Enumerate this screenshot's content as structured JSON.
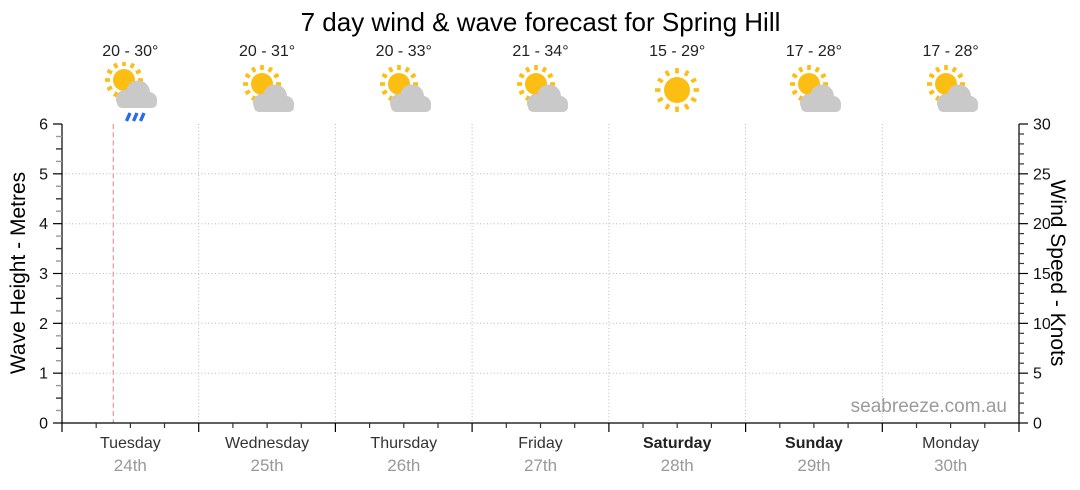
{
  "title": "7 day wind & wave forecast for Spring Hill",
  "watermark": "seabreeze.com.au",
  "colors": {
    "sun": "#fcbe12",
    "cloud": "#c9c9c9",
    "rain": "#2a6be8",
    "grid": "#b8b8b8",
    "axis": "#000000",
    "half_tick": "#333333",
    "quarter_tick": "#999999",
    "day_text": "#333333",
    "date_text": "#999999",
    "temp_text": "#222222",
    "watermark_text": "#9b9b9b",
    "now_line": "#f09c9c"
  },
  "forecast_days": [
    {
      "day": "Tuesday",
      "date": "24th",
      "temp_range": "20 - 30°",
      "icon": "sun-cloud-rain",
      "bold": false
    },
    {
      "day": "Wednesday",
      "date": "25th",
      "temp_range": "20 - 31°",
      "icon": "sun-cloud",
      "bold": false
    },
    {
      "day": "Thursday",
      "date": "26th",
      "temp_range": "20 - 33°",
      "icon": "sun-cloud",
      "bold": false
    },
    {
      "day": "Friday",
      "date": "27th",
      "temp_range": "21 - 34°",
      "icon": "sun-cloud",
      "bold": false
    },
    {
      "day": "Saturday",
      "date": "28th",
      "temp_range": "15 - 29°",
      "icon": "sun",
      "bold": true
    },
    {
      "day": "Sunday",
      "date": "29th",
      "temp_range": "17 - 28°",
      "icon": "sun-cloud",
      "bold": true
    },
    {
      "day": "Monday",
      "date": "30th",
      "temp_range": "17 - 28°",
      "icon": "sun-cloud",
      "bold": false
    }
  ],
  "chart_data": {
    "type": "line",
    "title": "7 day wind & wave forecast for Spring Hill",
    "series": [],
    "note": "axes are empty - no wave or wind series is plotted in the screenshot",
    "y_left": {
      "label": "Wave Height - Metres",
      "range": [
        0,
        6
      ],
      "ticks": [
        0,
        1,
        2,
        3,
        4,
        5,
        6
      ],
      "minor_tick_step": 0.25,
      "gridlines": [
        1,
        2,
        3,
        4,
        5
      ]
    },
    "y_right": {
      "label": "Wind Speed - Knots",
      "range": [
        0,
        30
      ],
      "ticks": [
        0,
        5,
        10,
        15,
        20,
        25,
        30
      ],
      "minor_tick_step": 1
    },
    "x": {
      "categories": [
        "Tuesday",
        "Wednesday",
        "Thursday",
        "Friday",
        "Saturday",
        "Sunday",
        "Monday"
      ],
      "dates": [
        "24th",
        "25th",
        "26th",
        "27th",
        "28th",
        "29th",
        "30th"
      ],
      "days": 7,
      "minor_ticks_per_day": 4,
      "gridlines": "interior day boundaries, dotted"
    },
    "grid": true,
    "annotations": {
      "now_line": {
        "day_index": 0,
        "day_fraction": 0.375,
        "style": "dashed",
        "color": "#f09c9c"
      }
    }
  }
}
